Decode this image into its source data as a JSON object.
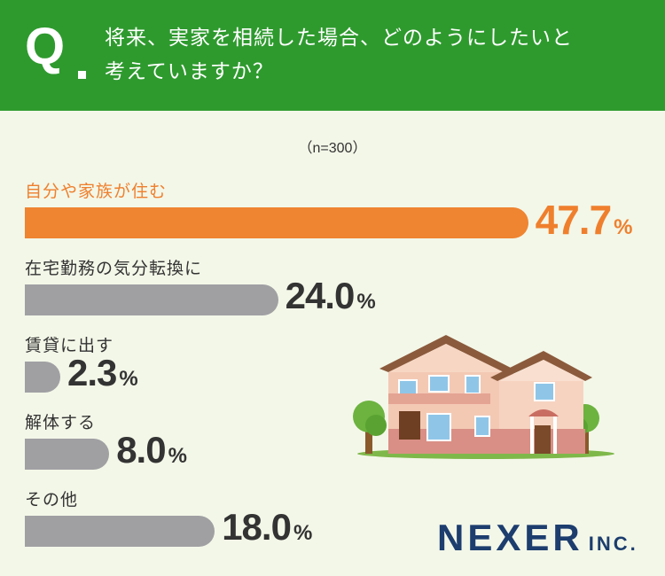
{
  "question": {
    "mark": "Q",
    "text": "将来、実家を相続した場合、どのようにしたいと\n考えていますか？"
  },
  "sample": "（n=300）",
  "colors": {
    "header": "#2e9a2e",
    "highlight": "#ef8431",
    "bar": "#a0a0a3",
    "background": "#f3f7e8",
    "logo": "#1c3d6e"
  },
  "chart_data": {
    "type": "bar",
    "orientation": "horizontal",
    "categories": [
      "自分や家族が住む",
      "在宅勤務の気分転換に",
      "賃貸に出す",
      "解体する",
      "その他"
    ],
    "values": [
      47.7,
      24.0,
      2.3,
      8.0,
      18.0
    ],
    "value_labels": [
      "47.7",
      "24.0",
      "2.3",
      "8.0",
      "18.0"
    ],
    "unit": "%",
    "highlight_index": 0,
    "xlim": [
      0,
      100
    ]
  },
  "logo": {
    "main": "NEXER",
    "sub": "INC."
  }
}
